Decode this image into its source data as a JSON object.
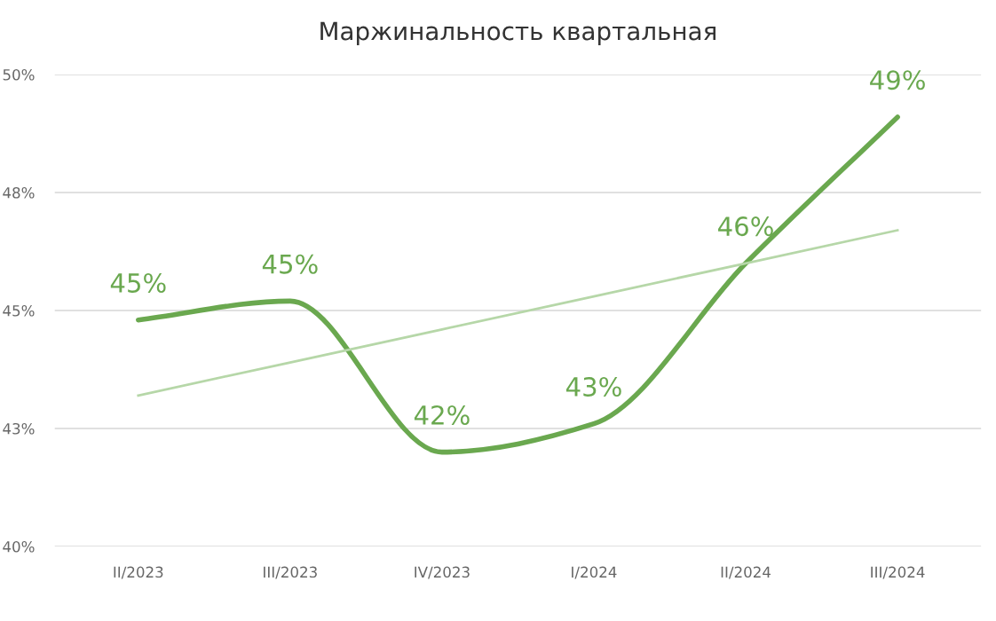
{
  "chart_data": {
    "type": "line",
    "title": "Маржинальность квартальная",
    "categories": [
      "II/2023",
      "III/2023",
      "IV/2023",
      "I/2024",
      "II/2024",
      "III/2024"
    ],
    "series": [
      {
        "color": "#6aa84f",
        "values": [
          44.8,
          45.2,
          42.0,
          42.6,
          46.0,
          49.1
        ],
        "value_labels": [
          "45%",
          "45%",
          "42%",
          "43%",
          "46%",
          "49%"
        ]
      },
      {
        "color": "#b6d7a8",
        "values": [
          43.2,
          43.9,
          44.6,
          45.3,
          46.0,
          46.7
        ]
      }
    ],
    "ylim": [
      40,
      50
    ],
    "yticks": [
      {
        "value": 40,
        "label": "40%"
      },
      {
        "value": 42.5,
        "label": "43%"
      },
      {
        "value": 45,
        "label": "45%"
      },
      {
        "value": 47.5,
        "label": "48%"
      },
      {
        "value": 50,
        "label": "50%"
      }
    ],
    "grid": "y",
    "marker": "none",
    "line_style": "solid"
  }
}
